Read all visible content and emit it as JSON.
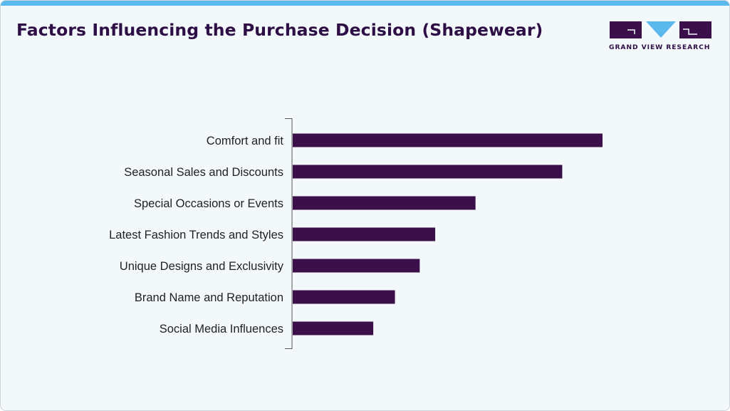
{
  "header": {
    "title": "Factors Influencing the Purchase Decision (Shapewear)",
    "logo_text": "GRAND VIEW RESEARCH"
  },
  "colors": {
    "bar": "#3a0f4a",
    "accent": "#5ab8ec",
    "background": "#f3f8fb",
    "title": "#2e0f45"
  },
  "chart_data": {
    "type": "bar",
    "orientation": "horizontal",
    "categories": [
      "Comfort and fit",
      "Seasonal Sales and Discounts",
      "Special Occasions or Events",
      "Latest Fashion Trends and Styles",
      "Unique Designs and Exclusivity",
      "Brand Name and Reputation",
      "Social Media Influences"
    ],
    "values": [
      100,
      87,
      59,
      46,
      41,
      33,
      26
    ],
    "title": "Factors Influencing the Purchase Decision (Shapewear)",
    "xlabel": "",
    "ylabel": "",
    "xlim": [
      0,
      100
    ],
    "grid": false,
    "legend": "none"
  }
}
